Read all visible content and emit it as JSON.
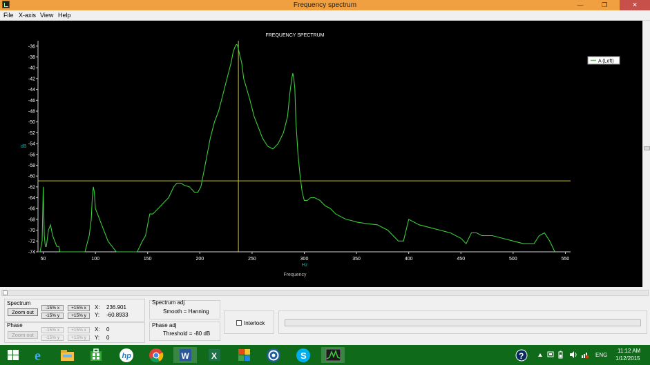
{
  "window": {
    "title": "Frequency spectrum"
  },
  "menu": [
    "File",
    "X-axis",
    "View",
    "Help"
  ],
  "chart_data": {
    "type": "line",
    "title": "FREQUENCY SPECTRUM",
    "xlabel": "Frequency",
    "xunit": "Hz",
    "ylabel": "dB",
    "xlim": [
      45,
      555
    ],
    "ylim": [
      -74,
      -35
    ],
    "xticks": [
      50,
      100,
      150,
      200,
      250,
      300,
      350,
      400,
      450,
      500,
      550
    ],
    "yticks": [
      -36,
      -38,
      -40,
      -42,
      -44,
      -46,
      -48,
      -50,
      -52,
      -54,
      -56,
      -58,
      -60,
      -62,
      -64,
      -66,
      -68,
      -70,
      -72,
      -74
    ],
    "grid": false,
    "legend_position": "top-right",
    "colors": {
      "series": "#3ccc3c",
      "cursor": "#c8c828",
      "text": "#ffffff",
      "axis_title": "#00b4b4"
    },
    "series": [
      {
        "name": "A (Left)",
        "x": [
          45,
          47,
          49,
          50,
          51,
          52,
          53,
          55,
          57,
          59,
          61,
          63,
          65,
          66,
          68,
          70,
          72,
          78,
          85,
          90,
          94,
          96,
          97,
          98,
          99,
          100,
          102,
          104,
          106,
          108,
          110,
          112,
          116,
          120,
          124,
          128,
          132,
          136,
          140,
          145,
          148,
          150,
          152,
          155,
          160,
          165,
          170,
          175,
          178,
          182,
          185,
          190,
          195,
          198,
          201,
          204,
          207,
          210,
          214,
          218,
          222,
          226,
          230,
          232,
          234,
          235,
          236,
          237,
          238,
          240,
          242,
          245,
          248,
          252,
          256,
          260,
          265,
          270,
          275,
          280,
          284,
          286,
          288,
          289,
          290,
          291,
          292,
          294,
          296,
          298,
          300,
          303,
          306,
          310,
          315,
          320,
          325,
          330,
          335,
          340,
          345,
          350,
          360,
          370,
          380,
          390,
          395,
          400,
          410,
          420,
          430,
          440,
          450,
          455,
          460,
          465,
          470,
          480,
          490,
          500,
          510,
          520,
          525,
          530,
          535,
          540
        ],
        "y": [
          -74,
          -74,
          -72,
          -62,
          -71,
          -73,
          -73,
          -70,
          -69,
          -71,
          -72,
          -73,
          -73,
          -74,
          -74,
          -74,
          -74,
          -74,
          -74,
          -74,
          -71,
          -68,
          -64,
          -62,
          -63,
          -66,
          -67,
          -68,
          -69,
          -70,
          -71,
          -72,
          -73,
          -74,
          -74,
          -74,
          -74,
          -74,
          -74,
          -72,
          -71,
          -69,
          -67,
          -67,
          -66,
          -65,
          -64,
          -62,
          -61.3,
          -61.3,
          -61.7,
          -62,
          -63,
          -63,
          -62,
          -59,
          -56,
          -53,
          -50,
          -48,
          -45,
          -42,
          -39,
          -37,
          -36,
          -35.7,
          -35.8,
          -36.6,
          -37.5,
          -39,
          -42,
          -44,
          -46,
          -49,
          -51,
          -53,
          -54.5,
          -55,
          -54,
          -52,
          -49,
          -45,
          -42,
          -41,
          -42,
          -44,
          -50,
          -56,
          -60,
          -63,
          -64.5,
          -64.5,
          -64,
          -64,
          -64.5,
          -65.5,
          -66,
          -67,
          -67.5,
          -68,
          -68.2,
          -68.5,
          -68.8,
          -69,
          -70,
          -72,
          -72,
          -68,
          -69,
          -69.5,
          -70,
          -70.5,
          -71.5,
          -72.5,
          -70.5,
          -70.5,
          -71,
          -71,
          -71.5,
          -72,
          -72.5,
          -72.5,
          -71,
          -70.5,
          -72,
          -74
        ]
      }
    ],
    "cursor": {
      "x": 236.901,
      "y": -60.8933
    }
  },
  "controls": {
    "spectrum": {
      "label": "Spectrum",
      "zoom_out": "Zoom out",
      "minus_x": "-15% x",
      "plus_x": "+15% x",
      "minus_y": "-15% y",
      "plus_y": "+15% y",
      "x_label": "X:",
      "x_value": "236.901",
      "y_label": "Y:",
      "y_value": "-60.8933"
    },
    "phase": {
      "label": "Phase",
      "zoom_out": "Zoom out",
      "minus_x": "-15% x",
      "plus_x": "+15% x",
      "minus_y": "-15% y",
      "plus_y": "+15% y",
      "x_label": "X:",
      "x_value": "0",
      "y_label": "Y:",
      "y_value": "0"
    },
    "spectrum_adj": {
      "label": "Spectrum adj",
      "value": "Smooth = Hanning"
    },
    "phase_adj": {
      "label": "Phase adj",
      "value": "Threshold = -80 dB"
    },
    "interlock": {
      "label": "Interlock",
      "checked": false
    }
  },
  "taskbar": {
    "apps": [
      "windows-start",
      "internet-explorer",
      "file-explorer",
      "windows-store",
      "hp",
      "chrome",
      "word",
      "excel",
      "colorful-app",
      "circle-app",
      "skype",
      "spectrum-app"
    ],
    "lang": "ENG",
    "time": "11:12 AM",
    "date": "1/12/2015"
  }
}
